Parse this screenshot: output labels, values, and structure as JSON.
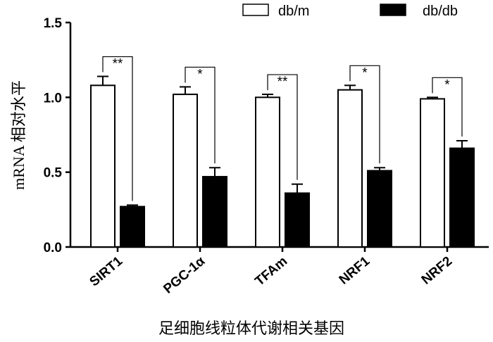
{
  "chart_data": {
    "type": "bar",
    "categories": [
      "SIRT1",
      "PGC-1α",
      "TFAm",
      "NRF1",
      "NRF2"
    ],
    "series": [
      {
        "name": "db/m",
        "values": [
          1.08,
          1.02,
          1.0,
          1.05,
          0.99
        ],
        "errors": [
          0.06,
          0.05,
          0.02,
          0.03,
          0.01
        ],
        "color": "#ffffff"
      },
      {
        "name": "db/db",
        "values": [
          0.27,
          0.47,
          0.36,
          0.51,
          0.66
        ],
        "errors": [
          0.01,
          0.06,
          0.06,
          0.02,
          0.05
        ],
        "color": "#000000"
      }
    ],
    "significance": [
      "**",
      "*",
      "**",
      "*",
      "*"
    ],
    "ylabel": "mRNA 相对水平",
    "xlabel": "足细胞线粒体代谢相关基因",
    "ylim": [
      0,
      1.5
    ],
    "yticks": [
      "0.0",
      "0.5",
      "1.0",
      "1.5"
    ],
    "grid": false,
    "legend_position": "top-right"
  }
}
